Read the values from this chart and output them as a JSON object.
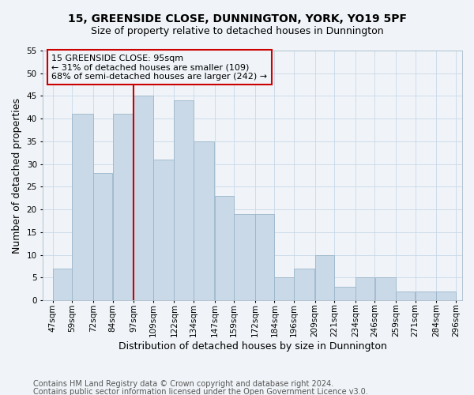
{
  "title": "15, GREENSIDE CLOSE, DUNNINGTON, YORK, YO19 5PF",
  "subtitle": "Size of property relative to detached houses in Dunnington",
  "xlabel": "Distribution of detached houses by size in Dunnington",
  "ylabel": "Number of detached properties",
  "footnote1": "Contains HM Land Registry data © Crown copyright and database right 2024.",
  "footnote2": "Contains public sector information licensed under the Open Government Licence v3.0.",
  "annotation_line1": "15 GREENSIDE CLOSE: 95sqm",
  "annotation_line2": "← 31% of detached houses are smaller (109)",
  "annotation_line3": "68% of semi-detached houses are larger (242) →",
  "bar_left_edges": [
    47,
    59,
    72,
    84,
    97,
    109,
    122,
    134,
    147,
    159,
    172,
    184,
    196,
    209,
    221,
    234,
    246,
    259,
    271,
    284
  ],
  "bar_widths": [
    12,
    13,
    12,
    13,
    12,
    13,
    12,
    13,
    12,
    13,
    12,
    12,
    13,
    12,
    13,
    12,
    13,
    12,
    13,
    12
  ],
  "bar_heights": [
    7,
    41,
    28,
    41,
    45,
    31,
    44,
    35,
    23,
    19,
    19,
    5,
    7,
    10,
    3,
    5,
    5,
    2,
    2,
    2
  ],
  "bar_color": "#c9d9e8",
  "bar_edge_color": "#9ab5ca",
  "reference_line_x": 97,
  "reference_line_color": "#cc0000",
  "annotation_box_color": "#cc0000",
  "ylim": [
    0,
    55
  ],
  "yticks": [
    0,
    5,
    10,
    15,
    20,
    25,
    30,
    35,
    40,
    45,
    50,
    55
  ],
  "xlim": [
    41,
    300
  ],
  "background_color": "#f0f4f8",
  "grid_color": "#c8d8e8",
  "title_fontsize": 10,
  "subtitle_fontsize": 9,
  "axis_label_fontsize": 9,
  "tick_fontsize": 7.5,
  "annotation_fontsize": 8,
  "footnote_fontsize": 7
}
